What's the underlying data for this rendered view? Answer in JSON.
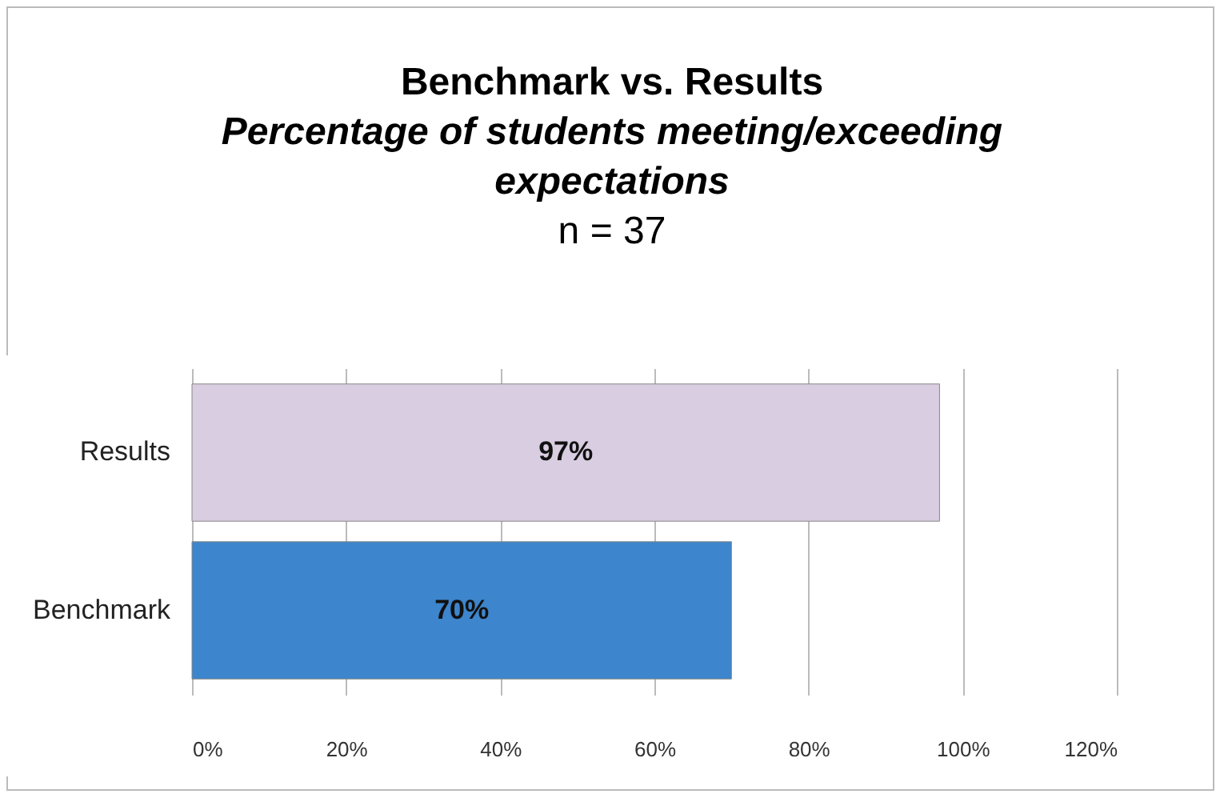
{
  "chart_data": {
    "type": "bar",
    "orientation": "horizontal",
    "title": "Benchmark vs. Results",
    "subtitle": "Percentage of students meeting/exceeding expectations",
    "annotations": [
      "n = 37"
    ],
    "categories": [
      "Results",
      "Benchmark"
    ],
    "values": [
      97,
      70
    ],
    "colors": [
      "#d8cde1",
      "#3d85cc"
    ],
    "value_labels": [
      "97%",
      "70%"
    ],
    "xlim": [
      0,
      120
    ],
    "xticks": [
      {
        "value": 0,
        "label": "0%"
      },
      {
        "value": 20,
        "label": "20%"
      },
      {
        "value": 40,
        "label": "40%"
      },
      {
        "value": 60,
        "label": "60%"
      },
      {
        "value": 80,
        "label": "80%"
      },
      {
        "value": 100,
        "label": "100%"
      },
      {
        "value": 120,
        "label": "120%"
      }
    ],
    "grid": "x"
  }
}
